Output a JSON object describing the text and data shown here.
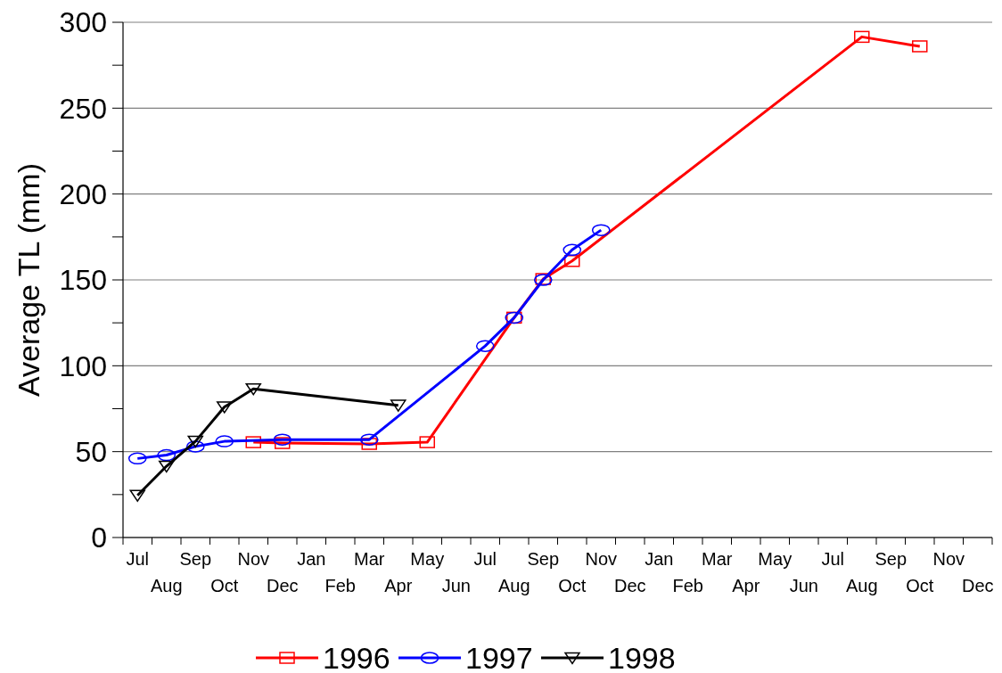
{
  "chart_data": {
    "type": "line",
    "ylabel": "Average TL (mm)",
    "categories": [
      "Jul",
      "Aug",
      "Sep",
      "Oct",
      "Nov",
      "Dec",
      "Jan",
      "Feb",
      "Mar",
      "Apr",
      "May",
      "Jun",
      "Jul",
      "Aug",
      "Sep",
      "Oct",
      "Nov",
      "Dec",
      "Jan",
      "Feb",
      "Mar",
      "Apr",
      "May",
      "Jun",
      "Jul",
      "Aug",
      "Sep",
      "Oct",
      "Nov",
      "Dec"
    ],
    "series": [
      {
        "name": "1996",
        "color": "#ff0000",
        "marker": "square",
        "values": [
          null,
          null,
          null,
          null,
          55.5,
          55,
          null,
          null,
          54.5,
          null,
          55.5,
          null,
          null,
          128,
          150.5,
          161,
          null,
          null,
          null,
          null,
          null,
          null,
          null,
          null,
          null,
          291.5,
          null,
          286,
          null,
          null
        ]
      },
      {
        "name": "1997",
        "color": "#0000ff",
        "marker": "circle",
        "values": [
          46,
          48,
          53,
          56,
          null,
          57,
          null,
          null,
          57,
          null,
          null,
          null,
          111.5,
          128,
          150,
          167.5,
          179,
          null,
          null,
          null,
          null,
          null,
          null,
          null,
          null,
          null,
          null,
          null,
          null,
          null
        ]
      },
      {
        "name": "1998",
        "color": "#000000",
        "marker": "triangle",
        "values": [
          24.5,
          41.5,
          56,
          76,
          86.5,
          null,
          null,
          null,
          null,
          77,
          null,
          null,
          null,
          null,
          null,
          null,
          null,
          null,
          null,
          null,
          null,
          null,
          null,
          null,
          null,
          null,
          null,
          null,
          null,
          null
        ]
      }
    ],
    "ylim": [
      0,
      300
    ],
    "yticks": [
      0,
      {
        "value": 25,
        "label": null
      },
      50,
      {
        "value": 75,
        "label": null
      },
      100,
      {
        "value": 125,
        "label": null
      },
      150,
      {
        "value": 175,
        "label": null
      },
      200,
      {
        "value": 225,
        "label": null
      },
      250,
      {
        "value": 275,
        "label": null
      },
      300
    ],
    "grid": "y",
    "legend": "bottom",
    "line_style": "solid"
  }
}
